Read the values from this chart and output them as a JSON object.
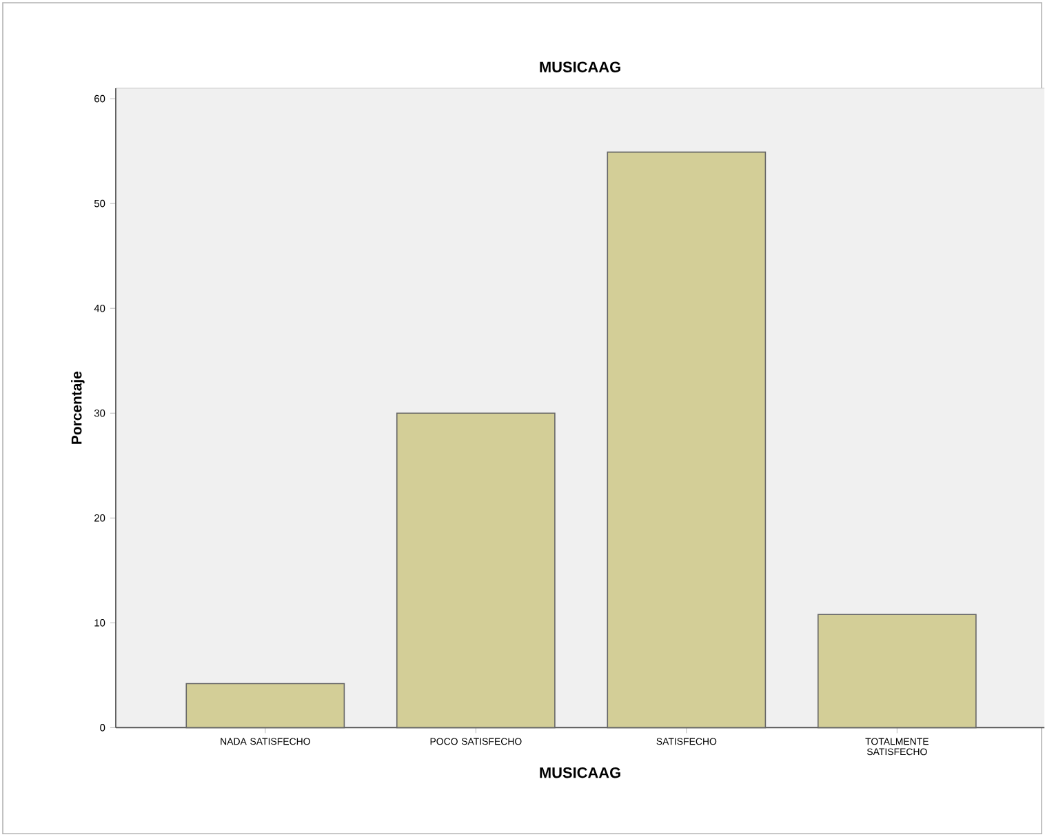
{
  "chart_data": {
    "type": "bar",
    "title": "MUSICAAG",
    "xlabel": "MUSICAAG",
    "ylabel": "Porcentaje",
    "categories": [
      "NADA SATISFECHO",
      "POCO SATISFECHO",
      "SATISFECHO",
      "TOTALMENTE SATISFECHO"
    ],
    "values": [
      4.2,
      30,
      54.9,
      10.8
    ],
    "color": "#d3ce97",
    "ylim": [
      0,
      61
    ],
    "yticks": [
      0,
      10,
      20,
      30,
      40,
      50,
      60
    ],
    "grid": false
  }
}
